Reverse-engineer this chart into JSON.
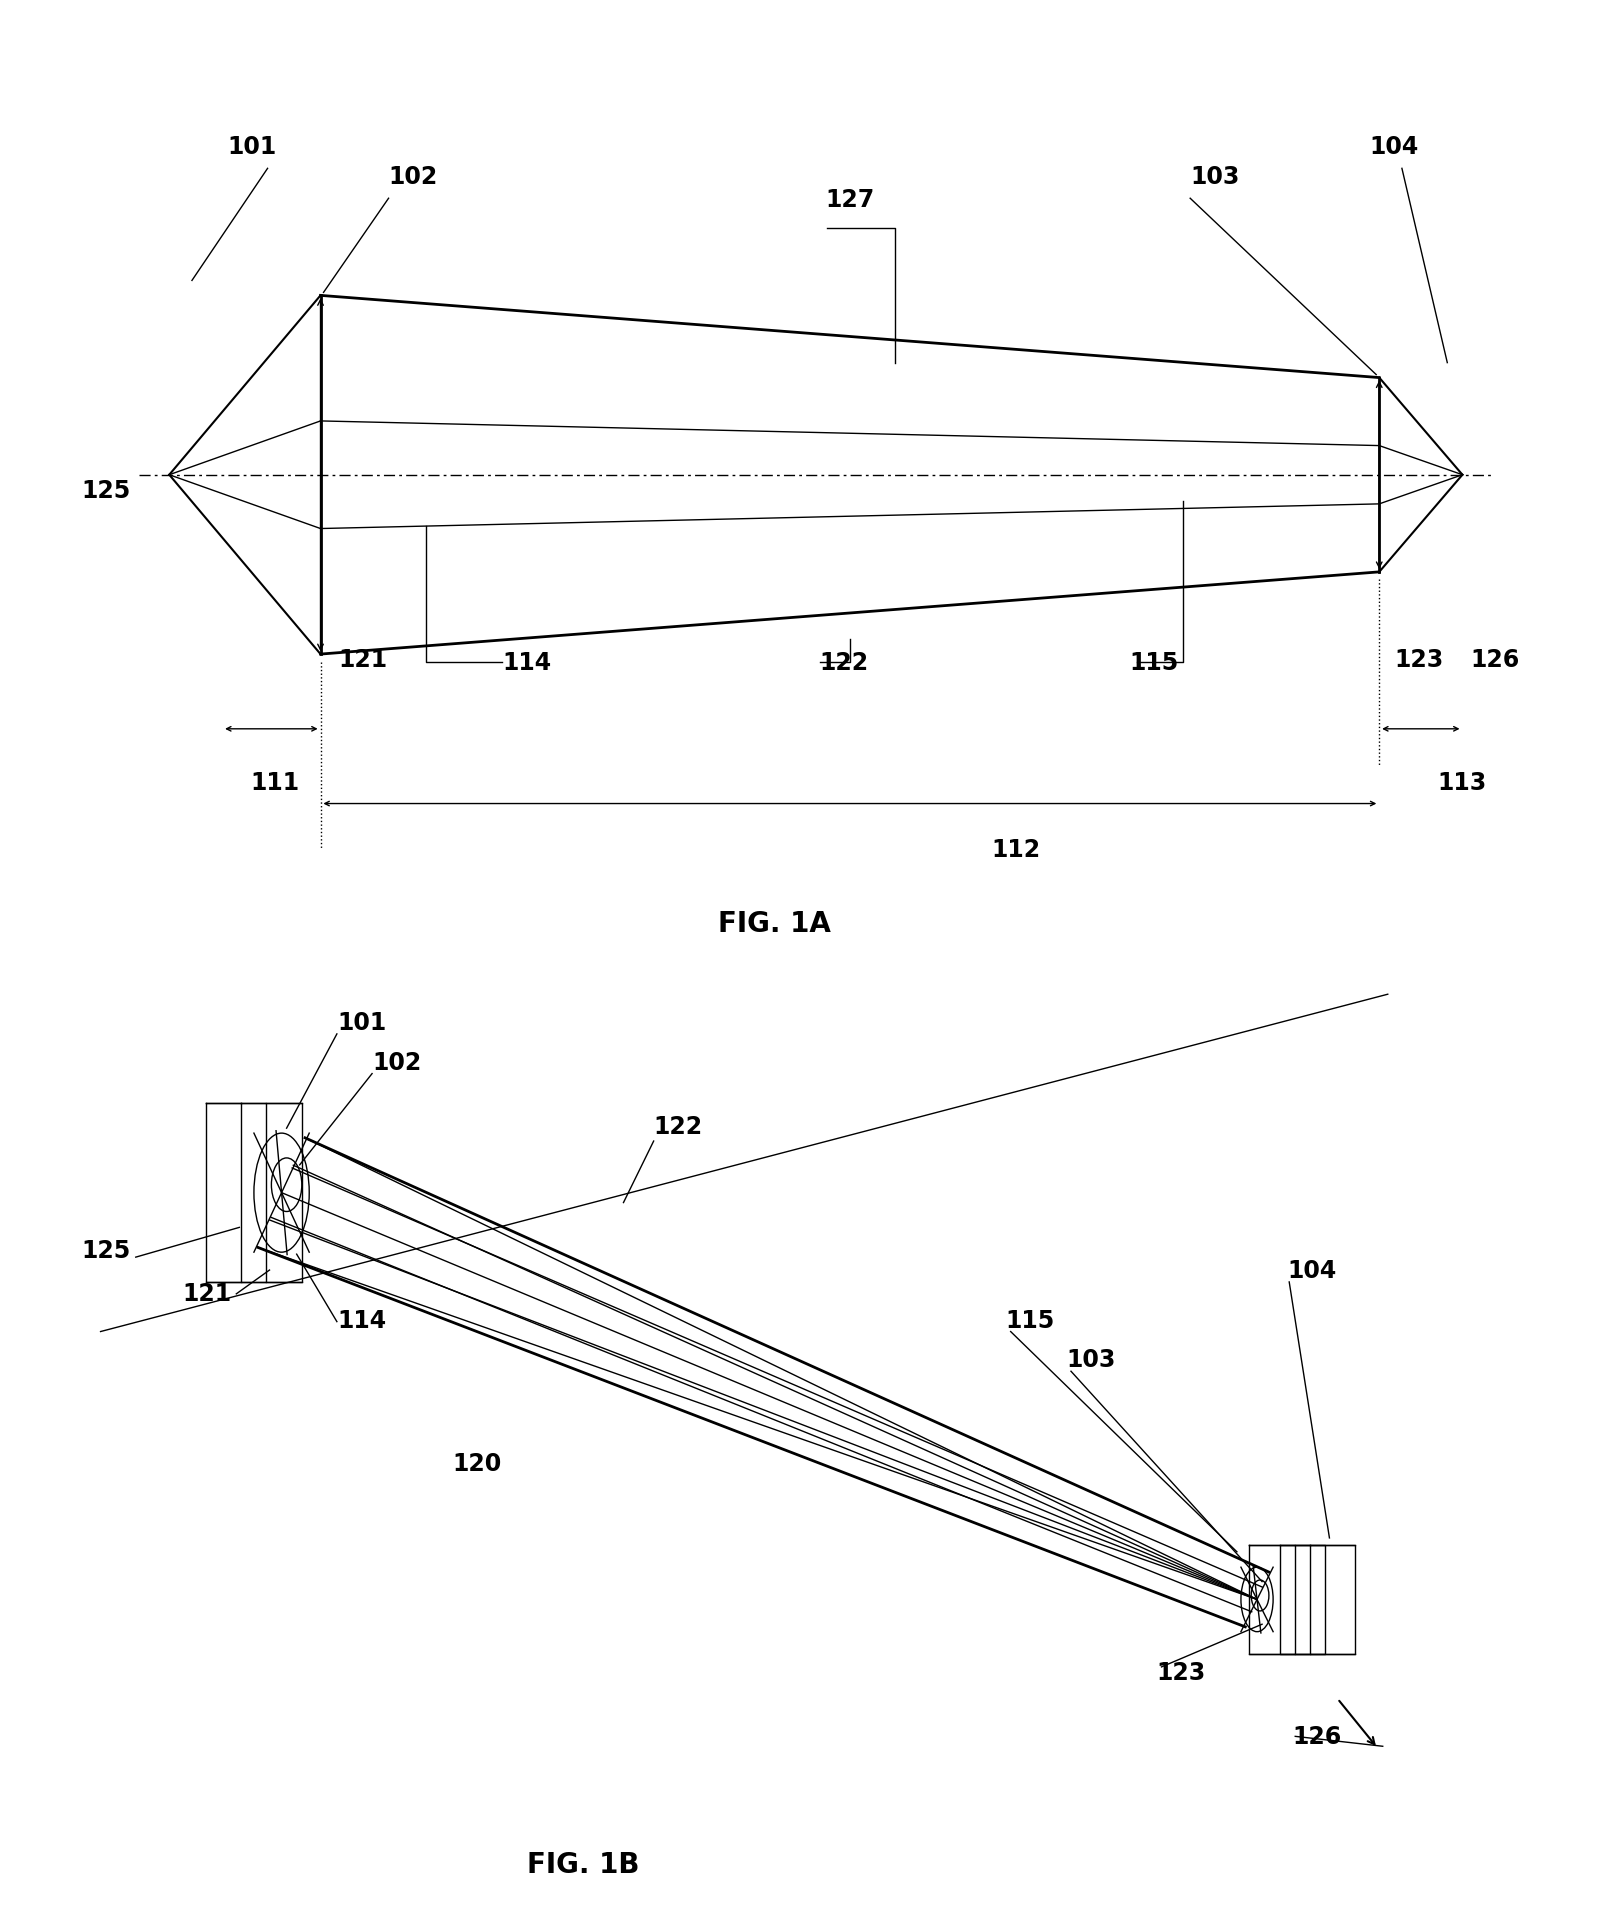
{
  "bg_color": "#ffffff",
  "fig_width": 16.09,
  "fig_height": 19.08,
  "fig1a_title": "FIG. 1A",
  "fig1b_title": "FIG. 1B",
  "lw_thick": 2.0,
  "lw_med": 1.5,
  "lw_thin": 1.0,
  "fontsize_label": 17,
  "fontsize_fig": 20
}
